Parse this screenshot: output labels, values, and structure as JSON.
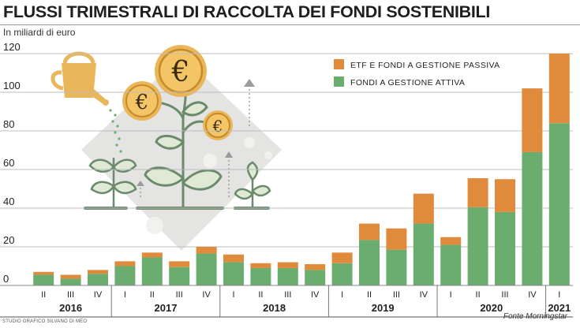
{
  "header": {
    "title": "FLUSSI TRIMESTRALI DI RACCOLTA DEI FONDI SOSTENIBILI",
    "subtitle": "In miliardi di euro"
  },
  "footer": {
    "credit": "STUDIO GRAFICO SILVANO DI MEO",
    "source": "Fonte Morningstar"
  },
  "colors": {
    "passive": "#e08a3c",
    "active": "#6aad6f",
    "illustration_bg": "#e4e4e2",
    "grid": "#bdbdbd"
  },
  "illustration": [
    "watering-can-icon",
    "euro-coin-icon",
    "plant-icon"
  ],
  "chart_data": {
    "type": "bar",
    "stacked": true,
    "title": "FLUSSI TRIMESTRALI DI RACCOLTA DEI FONDI SOSTENIBILI",
    "ylabel": "In miliardi di euro",
    "ylim": [
      0,
      120
    ],
    "yticks": [
      0,
      20,
      40,
      60,
      80,
      100,
      120
    ],
    "grid": true,
    "legend_position": "top-right",
    "categories": [
      "II",
      "III",
      "IV",
      "I",
      "II",
      "III",
      "IV",
      "I",
      "II",
      "III",
      "IV",
      "I",
      "II",
      "III",
      "IV",
      "I",
      "II",
      "III",
      "IV",
      "I"
    ],
    "groups": [
      {
        "label": "2016",
        "count": 3
      },
      {
        "label": "2017",
        "count": 4
      },
      {
        "label": "2018",
        "count": 4
      },
      {
        "label": "2019",
        "count": 4
      },
      {
        "label": "2020",
        "count": 4
      },
      {
        "label": "2021",
        "count": 1
      }
    ],
    "series": [
      {
        "name": "FONDI A GESTIONE ATTIVA",
        "color": "#6aad6f",
        "values": [
          5.5,
          3.5,
          6,
          10,
          14.5,
          9.5,
          16.5,
          12,
          9,
          9,
          8,
          11.5,
          23.5,
          18.5,
          32,
          21,
          40.5,
          38,
          69,
          84
        ]
      },
      {
        "name": "ETF E FONDI A GESTIONE PASSIVA",
        "color": "#e08a3c",
        "values": [
          1.5,
          2,
          2,
          2.5,
          2.5,
          3,
          3.5,
          4,
          2.5,
          3,
          3,
          5.5,
          8.5,
          11,
          15.5,
          4,
          15,
          17,
          33,
          36
        ]
      }
    ]
  }
}
